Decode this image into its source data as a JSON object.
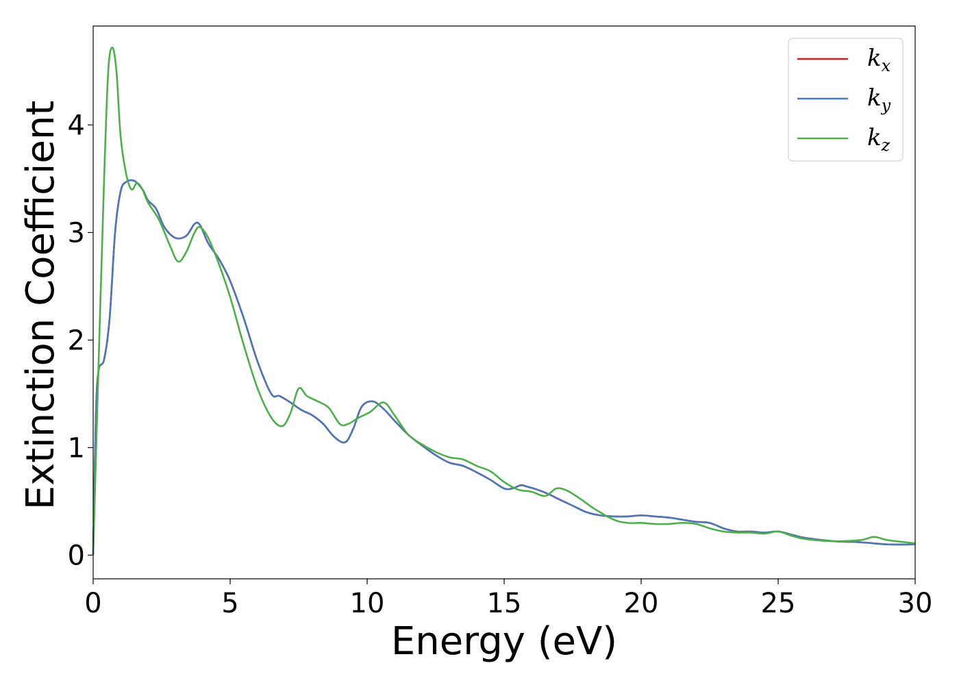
{
  "chart_data": {
    "type": "line",
    "title": "",
    "xlabel": "Energy (eV)",
    "ylabel": "Extinction Coefficient",
    "xlim": [
      0,
      30
    ],
    "ylim": [
      -0.22,
      4.92
    ],
    "xticks": [
      0,
      5,
      10,
      15,
      20,
      25,
      30
    ],
    "xtick_labels": [
      "0",
      "5",
      "10",
      "15",
      "20",
      "25",
      "30"
    ],
    "yticks": [
      0,
      1,
      2,
      3,
      4
    ],
    "ytick_labels": [
      "0",
      "1",
      "2",
      "3",
      "4"
    ],
    "grid": false,
    "legend": {
      "position": "top-right"
    },
    "series": [
      {
        "name": "k_x",
        "label_base": "k",
        "label_sub": "x",
        "color": "#e41a1c",
        "x": [
          0,
          0.1,
          0.2,
          0.4,
          0.6,
          0.8,
          1.0,
          1.2,
          1.5,
          1.8,
          2.0,
          2.3,
          2.6,
          3.0,
          3.4,
          3.7,
          3.9,
          4.2,
          4.6,
          5.0,
          5.5,
          6.0,
          6.5,
          6.8,
          7.2,
          7.6,
          8.0,
          8.4,
          8.8,
          9.2,
          9.5,
          9.8,
          10.2,
          10.6,
          11.0,
          11.5,
          12.0,
          12.5,
          13.0,
          13.5,
          14.0,
          14.5,
          15.0,
          15.3,
          15.6,
          15.8,
          16.2,
          16.6,
          17.0,
          17.5,
          18.0,
          18.5,
          19.0,
          19.5,
          20.0,
          20.5,
          21.0,
          21.5,
          22.0,
          22.5,
          23.0,
          23.5,
          24.0,
          24.5,
          25.0,
          25.5,
          26.0,
          27.0,
          28.0,
          29.0,
          30.0
        ],
        "y": [
          0.0,
          1.3,
          1.72,
          1.82,
          2.2,
          3.0,
          3.38,
          3.47,
          3.48,
          3.4,
          3.3,
          3.22,
          3.05,
          2.95,
          2.97,
          3.08,
          3.07,
          2.9,
          2.75,
          2.55,
          2.2,
          1.8,
          1.5,
          1.48,
          1.42,
          1.35,
          1.3,
          1.22,
          1.1,
          1.05,
          1.18,
          1.38,
          1.43,
          1.36,
          1.25,
          1.12,
          1.02,
          0.93,
          0.86,
          0.83,
          0.77,
          0.7,
          0.62,
          0.62,
          0.65,
          0.64,
          0.61,
          0.57,
          0.52,
          0.46,
          0.4,
          0.37,
          0.36,
          0.36,
          0.37,
          0.36,
          0.35,
          0.33,
          0.31,
          0.3,
          0.25,
          0.22,
          0.22,
          0.21,
          0.22,
          0.19,
          0.16,
          0.13,
          0.12,
          0.1,
          0.1
        ]
      },
      {
        "name": "k_y",
        "label_base": "k",
        "label_sub": "y",
        "color": "#4a78b8",
        "x": [
          0,
          0.1,
          0.2,
          0.4,
          0.6,
          0.8,
          1.0,
          1.2,
          1.5,
          1.8,
          2.0,
          2.3,
          2.6,
          3.0,
          3.4,
          3.7,
          3.9,
          4.2,
          4.6,
          5.0,
          5.5,
          6.0,
          6.5,
          6.8,
          7.2,
          7.6,
          8.0,
          8.4,
          8.8,
          9.2,
          9.5,
          9.8,
          10.2,
          10.6,
          11.0,
          11.5,
          12.0,
          12.5,
          13.0,
          13.5,
          14.0,
          14.5,
          15.0,
          15.3,
          15.6,
          15.8,
          16.2,
          16.6,
          17.0,
          17.5,
          18.0,
          18.5,
          19.0,
          19.5,
          20.0,
          20.5,
          21.0,
          21.5,
          22.0,
          22.5,
          23.0,
          23.5,
          24.0,
          24.5,
          25.0,
          25.5,
          26.0,
          27.0,
          28.0,
          29.0,
          30.0
        ],
        "y": [
          0.0,
          1.3,
          1.72,
          1.82,
          2.2,
          3.0,
          3.38,
          3.47,
          3.48,
          3.4,
          3.3,
          3.22,
          3.05,
          2.95,
          2.97,
          3.08,
          3.07,
          2.9,
          2.75,
          2.55,
          2.2,
          1.8,
          1.5,
          1.48,
          1.42,
          1.35,
          1.3,
          1.22,
          1.1,
          1.05,
          1.18,
          1.38,
          1.43,
          1.36,
          1.25,
          1.12,
          1.02,
          0.93,
          0.86,
          0.83,
          0.77,
          0.7,
          0.62,
          0.62,
          0.65,
          0.64,
          0.61,
          0.57,
          0.52,
          0.46,
          0.4,
          0.37,
          0.36,
          0.36,
          0.37,
          0.36,
          0.35,
          0.33,
          0.31,
          0.3,
          0.25,
          0.22,
          0.22,
          0.21,
          0.22,
          0.19,
          0.16,
          0.13,
          0.12,
          0.1,
          0.1
        ]
      },
      {
        "name": "k_z",
        "label_base": "k",
        "label_sub": "z",
        "color": "#4daf4a",
        "x": [
          0,
          0.2,
          0.4,
          0.55,
          0.7,
          0.85,
          1.0,
          1.2,
          1.4,
          1.6,
          1.8,
          2.0,
          2.4,
          2.8,
          3.1,
          3.4,
          3.7,
          3.9,
          4.2,
          4.6,
          5.0,
          5.5,
          6.0,
          6.5,
          6.9,
          7.2,
          7.5,
          7.8,
          8.2,
          8.6,
          9.0,
          9.3,
          9.7,
          10.1,
          10.6,
          11.0,
          11.5,
          12.0,
          12.5,
          13.0,
          13.5,
          14.0,
          14.5,
          15.0,
          15.5,
          16.0,
          16.5,
          16.9,
          17.3,
          17.8,
          18.3,
          19.0,
          19.5,
          20.0,
          20.5,
          21.0,
          21.5,
          22.0,
          22.5,
          23.0,
          23.5,
          24.0,
          24.5,
          25.0,
          25.5,
          26.0,
          27.0,
          28.0,
          28.5,
          29.0,
          30.0
        ],
        "y": [
          0.0,
          1.8,
          3.5,
          4.5,
          4.72,
          4.5,
          3.9,
          3.55,
          3.4,
          3.46,
          3.4,
          3.28,
          3.12,
          2.88,
          2.73,
          2.82,
          3.0,
          3.05,
          2.95,
          2.7,
          2.4,
          1.95,
          1.55,
          1.28,
          1.2,
          1.32,
          1.55,
          1.48,
          1.43,
          1.37,
          1.22,
          1.22,
          1.28,
          1.33,
          1.42,
          1.3,
          1.12,
          1.03,
          0.96,
          0.91,
          0.89,
          0.83,
          0.78,
          0.68,
          0.61,
          0.59,
          0.55,
          0.62,
          0.6,
          0.52,
          0.43,
          0.33,
          0.3,
          0.3,
          0.29,
          0.29,
          0.3,
          0.29,
          0.25,
          0.22,
          0.21,
          0.21,
          0.2,
          0.22,
          0.18,
          0.15,
          0.13,
          0.14,
          0.17,
          0.14,
          0.11
        ]
      }
    ]
  }
}
